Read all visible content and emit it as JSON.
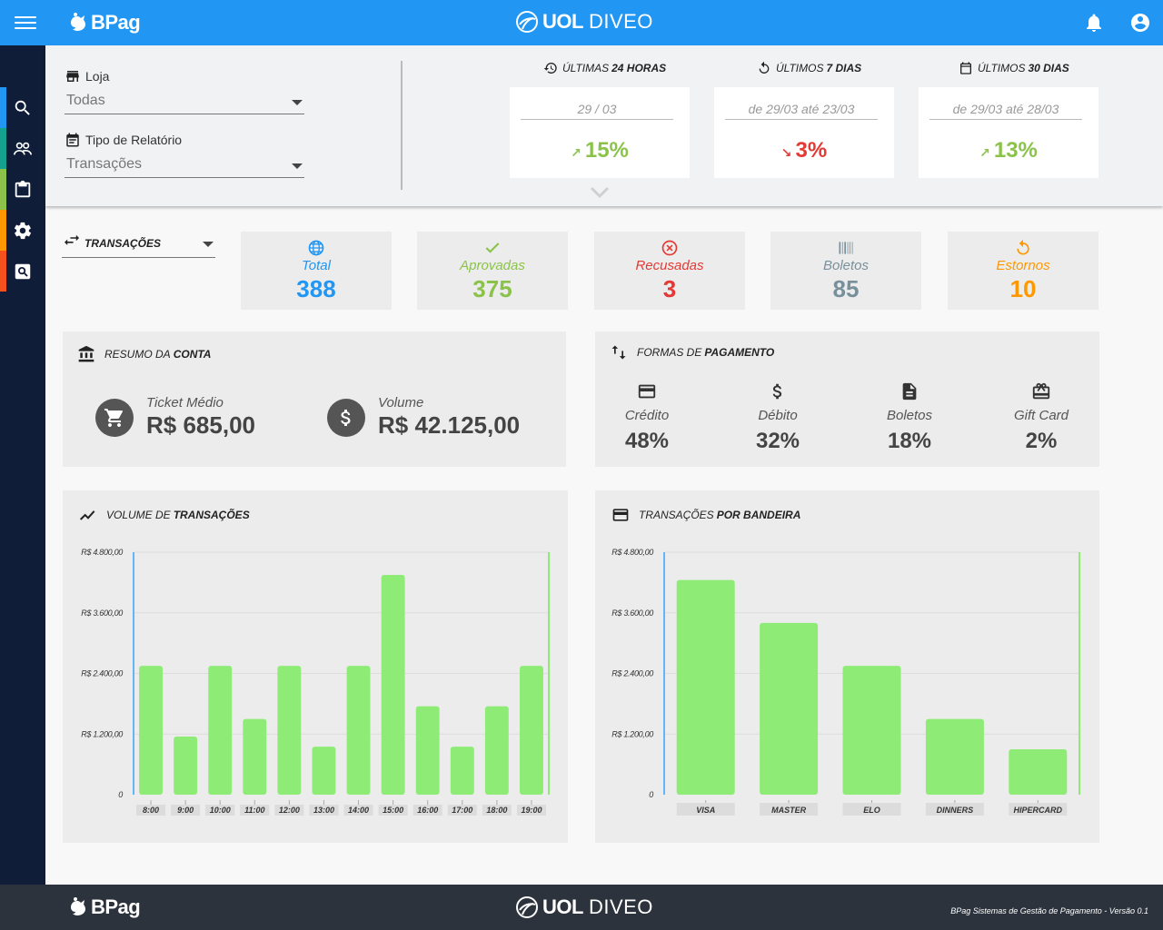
{
  "header": {
    "menu_icon": "hamburger-menu-icon",
    "brand_left": "BPag",
    "brand_center_bold": "UOL",
    "brand_center_regular": "DIVEO",
    "bell_icon": "bell-icon",
    "account_icon": "account-circle-icon"
  },
  "sidebar": {
    "items": [
      {
        "icon": "search-icon",
        "color": "#2196f3"
      },
      {
        "icon": "users-icon",
        "color": "#14a28e"
      },
      {
        "icon": "clipboard-icon",
        "color": "#8bc34a"
      },
      {
        "icon": "gear-icon",
        "color": "#ff9800"
      },
      {
        "icon": "report-search-icon",
        "color": "#f4511e"
      }
    ]
  },
  "filters": {
    "store_label": "Loja",
    "store_value": "Todas",
    "report_label": "Tipo de Relatório",
    "report_value": "Transações"
  },
  "periods": [
    {
      "title_prefix": "Últimas",
      "title_bold": "24 horas",
      "range": "29 / 03",
      "pct": "15%",
      "trend": "up",
      "color": "#8bc34a"
    },
    {
      "title_prefix": "Últimos",
      "title_bold": "7 dias",
      "range": "de 29/03 até 23/03",
      "pct": "3%",
      "trend": "down",
      "color": "#e53935"
    },
    {
      "title_prefix": "Últimos",
      "title_bold": "30 dias",
      "range": "de 29/03 até 28/03",
      "pct": "13%",
      "trend": "up",
      "color": "#8bc34a"
    }
  ],
  "transactions_selector": {
    "label": "Transações"
  },
  "stats": [
    {
      "label": "Total",
      "value": "388",
      "color": "#2196f3",
      "icon": "globe-icon"
    },
    {
      "label": "Aprovadas",
      "value": "375",
      "color": "#8bc34a",
      "icon": "check-icon"
    },
    {
      "label": "Recusadas",
      "value": "3",
      "color": "#e53935",
      "icon": "cancel-circle-icon"
    },
    {
      "label": "Boletos",
      "value": "85",
      "color": "#78909c",
      "icon": "barcode-icon"
    },
    {
      "label": "Estornos",
      "value": "10",
      "color": "#ff9800",
      "icon": "undo-icon"
    }
  ],
  "account_summary": {
    "title_prefix": "Resumo da",
    "title_bold": "conta",
    "ticket_label": "Ticket Médio",
    "ticket_value": "R$ 685,00",
    "volume_label": "Volume",
    "volume_value": "R$ 42.125,00"
  },
  "payment_methods": {
    "title_prefix": "Formas de",
    "title_bold": "pagamento",
    "items": [
      {
        "label": "Crédito",
        "value": "48%",
        "icon": "credit-card-icon"
      },
      {
        "label": "Débito",
        "value": "32%",
        "icon": "dollar-icon"
      },
      {
        "label": "Boletos",
        "value": "18%",
        "icon": "document-icon"
      },
      {
        "label": "Gift Card",
        "value": "2%",
        "icon": "gift-card-icon"
      }
    ]
  },
  "chart_data": [
    {
      "type": "bar",
      "title_prefix": "Volume de",
      "title_bold": "transações",
      "categories": [
        "8:00",
        "9:00",
        "10:00",
        "11:00",
        "12:00",
        "13:00",
        "14:00",
        "15:00",
        "16:00",
        "17:00",
        "18:00",
        "19:00"
      ],
      "values": [
        2550,
        1150,
        2550,
        1500,
        2550,
        950,
        2550,
        4350,
        1750,
        950,
        1750,
        2550
      ],
      "ylim": [
        0,
        4800
      ],
      "yticks": [
        0,
        1200,
        2400,
        3600,
        4800
      ],
      "ytick_labels": [
        "0",
        "R$ 1.200,00",
        "R$ 2.400,00",
        "R$ 3.600,00",
        "R$ 4.800,00"
      ],
      "bar_color": "#8eec76",
      "grid": true
    },
    {
      "type": "bar",
      "title_prefix": "Transações",
      "title_bold": "por bandeira",
      "categories": [
        "VISA",
        "MASTER",
        "ELO",
        "DINNERS",
        "HIPERCARD"
      ],
      "values": [
        4250,
        3400,
        2550,
        1500,
        900
      ],
      "ylim": [
        0,
        4800
      ],
      "yticks": [
        0,
        1200,
        2400,
        3600,
        4800
      ],
      "ytick_labels": [
        "0",
        "R$ 1.200,00",
        "R$ 2.400,00",
        "R$ 3.600,00",
        "R$ 4.800,00"
      ],
      "bar_color": "#8eec76",
      "grid": true
    }
  ],
  "footer": {
    "brand_left": "BPag",
    "brand_center_bold": "UOL",
    "brand_center_regular": "DIVEO",
    "version_text": "BPag Sistemas de Gestão de Pagamento - Versão 0.1"
  }
}
